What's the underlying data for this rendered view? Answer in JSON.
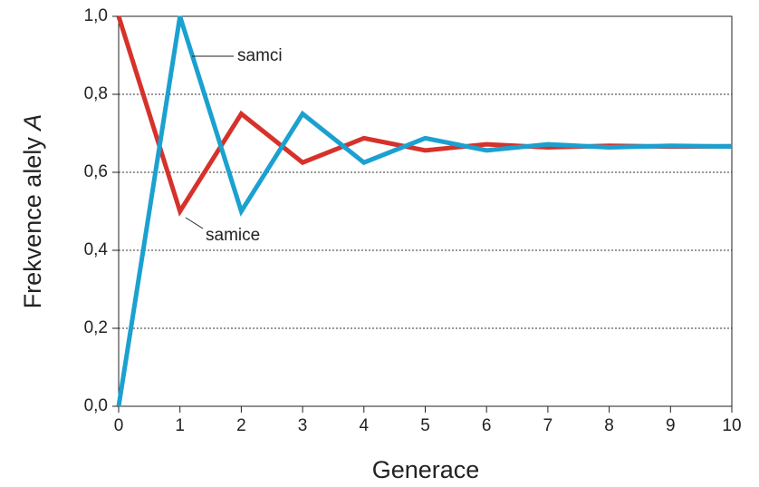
{
  "chart_data": {
    "type": "line",
    "x_label": "Generace",
    "y_label": "Frekvence alely",
    "y_label_var": "A",
    "x": [
      0,
      1,
      2,
      3,
      4,
      5,
      6,
      7,
      8,
      9,
      10
    ],
    "series": [
      {
        "name": "samice",
        "color": "#d6322b",
        "values": [
          1,
          0.5,
          0.75,
          0.625,
          0.6875,
          0.65625,
          0.671875,
          0.6641,
          0.668,
          0.666,
          0.667
        ]
      },
      {
        "name": "samci",
        "color": "#1ba1d0",
        "values": [
          0,
          1,
          0.5,
          0.75,
          0.625,
          0.6875,
          0.65625,
          0.671875,
          0.6641,
          0.668,
          0.666
        ]
      }
    ],
    "xlim": [
      0,
      10
    ],
    "xticks": [
      0,
      1,
      2,
      3,
      4,
      5,
      6,
      7,
      8,
      9,
      10
    ],
    "ylim": [
      0,
      1
    ],
    "yticks": [
      {
        "value": 0,
        "label": "0,0"
      },
      {
        "value": 0.2,
        "label": "0,2"
      },
      {
        "value": 0.4,
        "label": "0,4"
      },
      {
        "value": 0.6,
        "label": "0,6"
      },
      {
        "value": 0.8,
        "label": "0,8"
      },
      {
        "value": 1,
        "label": "1,0"
      }
    ],
    "grid": true
  }
}
